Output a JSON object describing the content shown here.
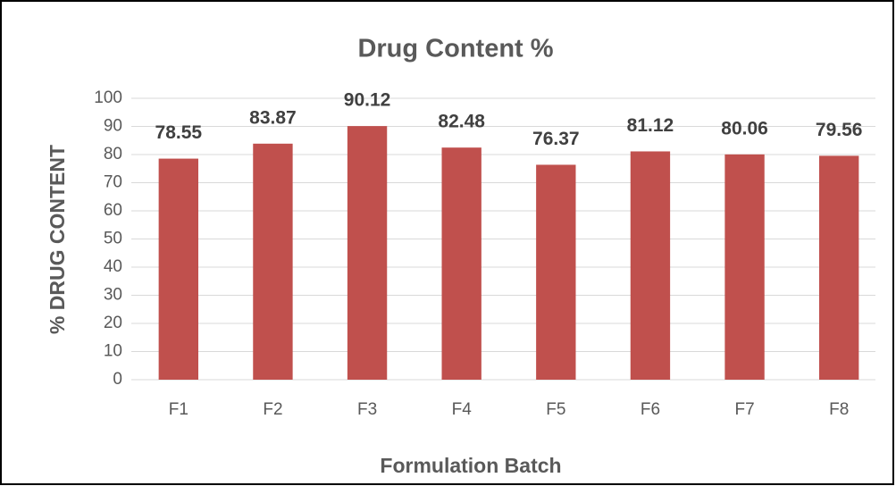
{
  "chart_data": {
    "type": "bar",
    "title": "Drug Content %",
    "xlabel": "Formulation Batch",
    "ylabel": "% DRUG CONTENT",
    "categories": [
      "F1",
      "F2",
      "F3",
      "F4",
      "F5",
      "F6",
      "F7",
      "F8"
    ],
    "values": [
      78.55,
      83.87,
      90.12,
      82.48,
      76.37,
      81.12,
      80.06,
      79.56
    ],
    "color": "#c0504d",
    "ylim": [
      0,
      100
    ],
    "yticks": [
      0,
      10,
      20,
      30,
      40,
      50,
      60,
      70,
      80,
      90,
      100
    ],
    "grid": true
  }
}
